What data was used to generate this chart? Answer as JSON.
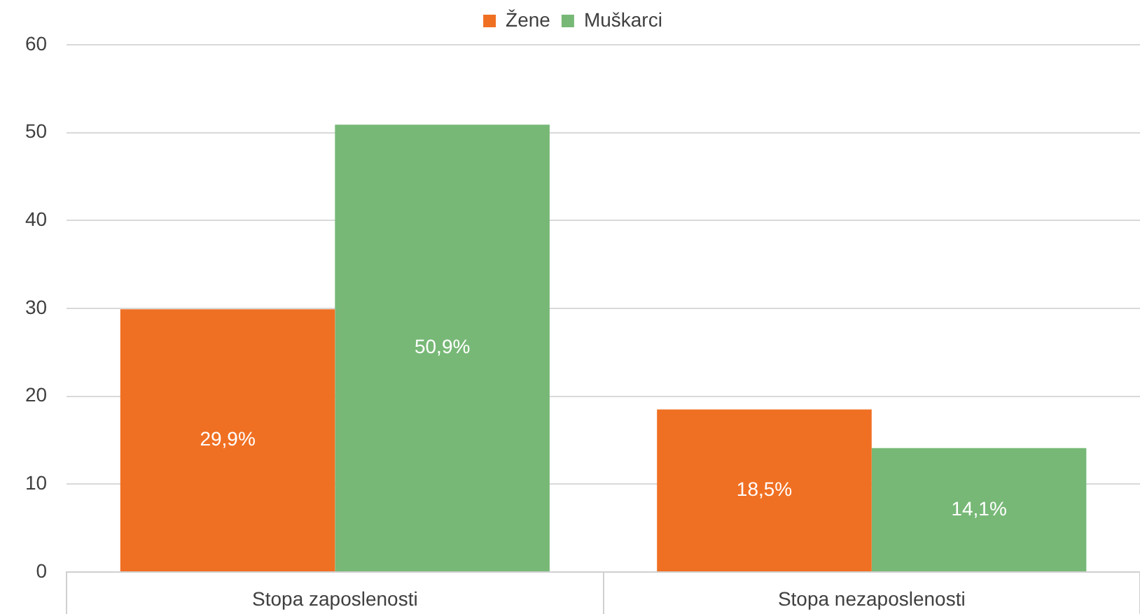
{
  "chart_data": {
    "type": "bar",
    "categories": [
      "Stopa zaposlenosti",
      "Stopa nezaposlenosti"
    ],
    "series": [
      {
        "name": "Žene",
        "color": "#f07023",
        "values": [
          29.9,
          18.5
        ],
        "value_labels": [
          "29,9%",
          "18,5%"
        ]
      },
      {
        "name": "Muškarci",
        "color": "#77b877",
        "values": [
          50.9,
          14.1
        ],
        "value_labels": [
          "50,9%",
          "14,1%"
        ]
      }
    ],
    "ylim": [
      0,
      60
    ],
    "yticks": [
      0,
      10,
      20,
      30,
      40,
      50,
      60
    ],
    "grid": "y",
    "legend": "top"
  }
}
